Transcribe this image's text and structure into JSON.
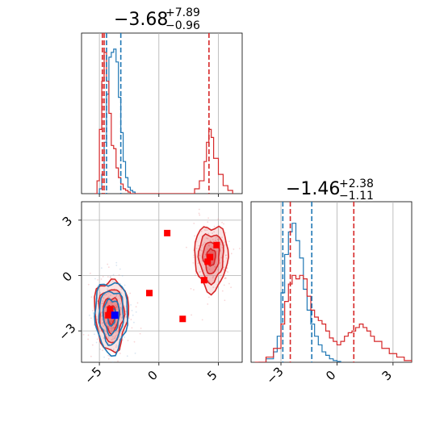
{
  "chart_data": {
    "type": "corner",
    "colors": {
      "series_a": "#1f77b4",
      "series_b": "#d62728",
      "markers_b": "#ff0000",
      "marker_a": "#0000ff",
      "grid": "#b0b0b0"
    },
    "panels": [
      {
        "id": "hist-param-1",
        "type": "histogram",
        "title_value": "−3.68",
        "title_plus": "+7.89",
        "title_minus": "−0.96",
        "xlim": [
          -6.5,
          7.0
        ],
        "quantile_lines": {
          "blue": [
            -4.4,
            -3.2
          ],
          "red": [
            -4.75,
            -4.6,
            4.21
          ]
        },
        "series": [
          {
            "name": "",
            "color": "#1f77b4",
            "x": [
              -5.2,
              -5.0,
              -4.8,
              -4.6,
              -4.4,
              -4.2,
              -4.0,
              -3.8,
              -3.6,
              -3.4,
              -3.2,
              -3.0,
              -2.8,
              -2.6,
              -2.4,
              -2.2,
              -2.0
            ],
            "density": [
              0.0,
              0.03,
              0.12,
              0.32,
              0.62,
              0.85,
              0.88,
              0.9,
              0.82,
              0.6,
              0.38,
              0.2,
              0.1,
              0.04,
              0.02,
              0.01,
              0.0
            ]
          },
          {
            "name": "",
            "color": "#d62728",
            "x": [
              -5.4,
              -5.2,
              -5.0,
              -4.8,
              -4.6,
              -4.4,
              -4.2,
              -4.0,
              -3.8,
              -3.6,
              -3.4,
              -3.2,
              -3.0,
              -2.8,
              -2.6,
              -2.4,
              2.6,
              3.0,
              3.4,
              3.8,
              4.0,
              4.2,
              4.4,
              4.6,
              5.0,
              5.4,
              5.8,
              6.2
            ],
            "density": [
              0.0,
              0.08,
              0.4,
              0.7,
              0.88,
              0.7,
              0.5,
              0.3,
              0.28,
              0.16,
              0.1,
              0.06,
              0.03,
              0.02,
              0.01,
              0.0,
              0.0,
              0.03,
              0.08,
              0.2,
              0.32,
              0.4,
              0.35,
              0.22,
              0.12,
              0.05,
              0.02,
              0.0
            ]
          }
        ]
      },
      {
        "id": "scatter-2d",
        "type": "contour",
        "xlim": [
          -6.5,
          7.0
        ],
        "ylim": [
          -4.7,
          4.0
        ],
        "xticks": [
          "−5",
          "0",
          "5"
        ],
        "yticks": [
          "−3",
          "0",
          "3"
        ],
        "xtick_values": [
          -5,
          0,
          5
        ],
        "ytick_values": [
          -3,
          0,
          3
        ],
        "blue_blob": {
          "cx": -4.0,
          "cy": -2.2,
          "sx": 0.75,
          "sy": 1.05
        },
        "red_blobs": [
          {
            "cx": -4.0,
            "cy": -2.1,
            "sx": 0.8,
            "sy": 1.1
          },
          {
            "cx": 4.4,
            "cy": 1.0,
            "sx": 0.8,
            "sy": 1.0
          }
        ],
        "red_markers": [
          {
            "x": 0.7,
            "y": 2.3
          },
          {
            "x": -0.8,
            "y": -0.95
          },
          {
            "x": 2.0,
            "y": -2.35
          },
          {
            "x": 3.8,
            "y": -0.25
          },
          {
            "x": 4.1,
            "y": 0.75
          },
          {
            "x": 4.3,
            "y": 1.0
          },
          {
            "x": 4.85,
            "y": 1.65
          },
          {
            "x": -4.1,
            "y": -1.85
          },
          {
            "x": -4.25,
            "y": -2.15
          }
        ],
        "blue_marker": {
          "x": -3.7,
          "y": -2.15
        }
      },
      {
        "id": "hist-param-2",
        "type": "histogram",
        "title_value": "−1.46",
        "title_plus": "+2.38",
        "title_minus": "−1.11",
        "xlim": [
          -4.6,
          4.0
        ],
        "xticks": [
          "−3",
          "0",
          "3"
        ],
        "xtick_values": [
          -3,
          0,
          3
        ],
        "quantile_lines": {
          "blue": [
            -2.9,
            -1.35
          ],
          "red": [
            -2.5,
            0.9
          ]
        },
        "series": [
          {
            "name": "",
            "color": "#1f77b4",
            "x": [
              -4.2,
              -3.8,
              -3.4,
              -3.2,
              -3.0,
              -2.8,
              -2.6,
              -2.4,
              -2.2,
              -2.0,
              -1.8,
              -1.6,
              -1.4,
              -1.2,
              -1.0,
              -0.8,
              -0.6,
              -0.4,
              -0.2,
              0.0,
              0.2
            ],
            "density": [
              0.0,
              0.02,
              0.06,
              0.15,
              0.4,
              0.62,
              0.75,
              0.8,
              0.7,
              0.6,
              0.42,
              0.3,
              0.22,
              0.15,
              0.1,
              0.06,
              0.04,
              0.02,
              0.01,
              0.005,
              0.0
            ]
          },
          {
            "name": "",
            "color": "#d62728",
            "x": [
              -4.4,
              -3.8,
              -3.4,
              -3.0,
              -2.8,
              -2.6,
              -2.4,
              -2.2,
              -2.0,
              -1.8,
              -1.6,
              -1.4,
              -1.2,
              -1.0,
              -0.8,
              -0.6,
              -0.4,
              -0.2,
              0.0,
              0.2,
              0.4,
              0.6,
              0.8,
              1.0,
              1.2,
              1.4,
              1.6,
              1.8,
              2.0,
              2.4,
              2.8,
              3.2,
              3.6,
              4.0
            ],
            "density": [
              0.0,
              0.03,
              0.08,
              0.22,
              0.35,
              0.45,
              0.5,
              0.48,
              0.5,
              0.48,
              0.38,
              0.3,
              0.26,
              0.24,
              0.22,
              0.18,
              0.14,
              0.12,
              0.1,
              0.12,
              0.15,
              0.17,
              0.18,
              0.2,
              0.22,
              0.2,
              0.18,
              0.15,
              0.12,
              0.08,
              0.05,
              0.03,
              0.01,
              0.0
            ]
          }
        ]
      }
    ]
  }
}
